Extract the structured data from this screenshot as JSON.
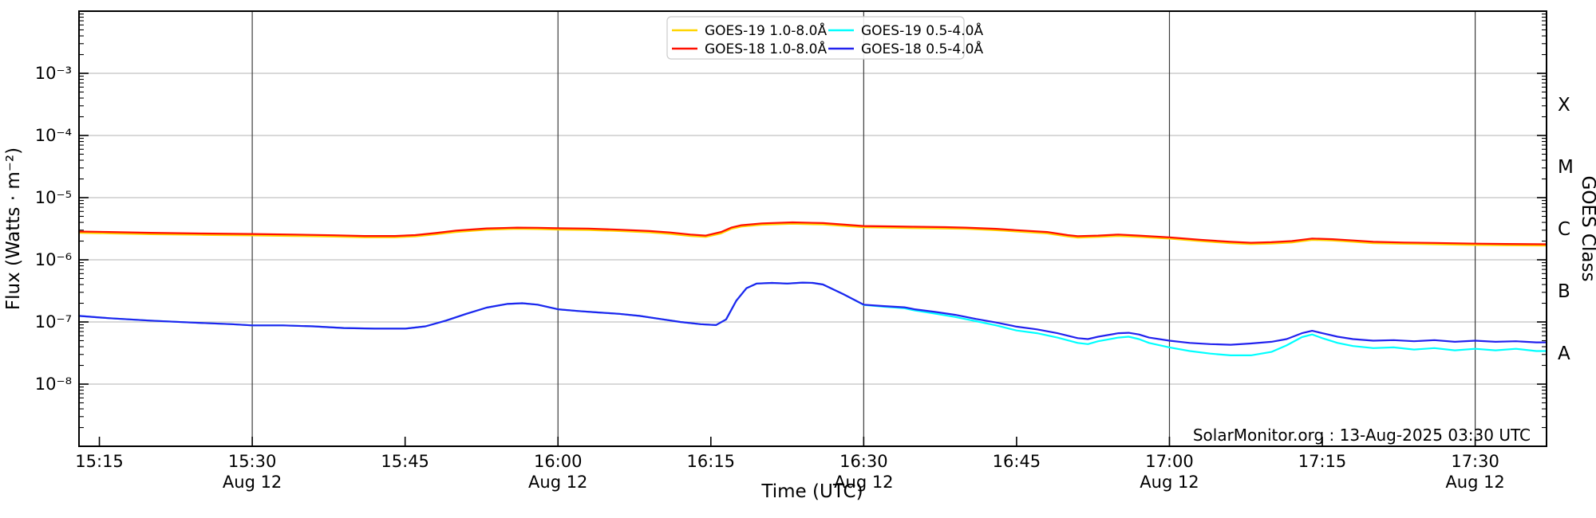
{
  "chart_data": {
    "type": "line",
    "title": "",
    "xlabel": "Time (UTC)",
    "ylabel": "Flux (Watts · m⁻²)",
    "annotation": "SolarMonitor.org : 13-Aug-2025 03:30 UTC",
    "grid": {
      "vertical_color": "#3c3c3c",
      "horizontal_color": "#c2c2c2"
    },
    "x_axis": {
      "start_minutes": 913,
      "end_minutes": 1057,
      "ticks": [
        {
          "t": 915,
          "label": "15:15",
          "sub": ""
        },
        {
          "t": 930,
          "label": "15:30",
          "sub": "Aug 12"
        },
        {
          "t": 945,
          "label": "15:45",
          "sub": ""
        },
        {
          "t": 960,
          "label": "16:00",
          "sub": "Aug 12"
        },
        {
          "t": 975,
          "label": "16:15",
          "sub": ""
        },
        {
          "t": 990,
          "label": "16:30",
          "sub": "Aug 12"
        },
        {
          "t": 1005,
          "label": "16:45",
          "sub": ""
        },
        {
          "t": 1020,
          "label": "17:00",
          "sub": "Aug 12"
        },
        {
          "t": 1035,
          "label": "17:15",
          "sub": ""
        },
        {
          "t": 1050,
          "label": "17:30",
          "sub": "Aug 12"
        }
      ]
    },
    "y_axis": {
      "log_min": -9,
      "log_max": -2,
      "ticks": [
        {
          "exp": -3,
          "label": "10⁻³"
        },
        {
          "exp": -4,
          "label": "10⁻⁴"
        },
        {
          "exp": -5,
          "label": "10⁻⁵"
        },
        {
          "exp": -6,
          "label": "10⁻⁶"
        },
        {
          "exp": -7,
          "label": "10⁻⁷"
        },
        {
          "exp": -8,
          "label": "10⁻⁸"
        }
      ]
    },
    "right_axis": {
      "label": "GOES Class",
      "classes": [
        {
          "label": "X",
          "log_center": -3.5
        },
        {
          "label": "M",
          "log_center": -4.5
        },
        {
          "label": "C",
          "log_center": -5.5
        },
        {
          "label": "B",
          "log_center": -6.5
        },
        {
          "label": "A",
          "log_center": -7.5
        }
      ]
    },
    "legend": {
      "position": "upper center",
      "columns": 2
    },
    "series": [
      {
        "name": "GOES-19 1.0-8.0Å",
        "color": "#ffd400",
        "points": [
          [
            913,
            2.71e-06
          ],
          [
            916,
            2.66e-06
          ],
          [
            920,
            2.58e-06
          ],
          [
            925,
            2.52e-06
          ],
          [
            930,
            2.47e-06
          ],
          [
            934,
            2.42e-06
          ],
          [
            938,
            2.36e-06
          ],
          [
            941,
            2.3e-06
          ],
          [
            944,
            2.3e-06
          ],
          [
            946,
            2.38e-06
          ],
          [
            948,
            2.57e-06
          ],
          [
            950,
            2.8e-06
          ],
          [
            953,
            3.04e-06
          ],
          [
            956,
            3.14e-06
          ],
          [
            958,
            3.12e-06
          ],
          [
            960,
            3.06e-06
          ],
          [
            963,
            3.02e-06
          ],
          [
            966,
            2.9e-06
          ],
          [
            969,
            2.76e-06
          ],
          [
            971,
            2.61e-06
          ],
          [
            973,
            2.42e-06
          ],
          [
            974.5,
            2.33e-06
          ],
          [
            976,
            2.66e-06
          ],
          [
            977,
            3.14e-06
          ],
          [
            978,
            3.42e-06
          ],
          [
            980,
            3.66e-06
          ],
          [
            983,
            3.8e-06
          ],
          [
            986,
            3.7e-06
          ],
          [
            990,
            3.33e-06
          ],
          [
            993,
            3.28e-06
          ],
          [
            995,
            3.23e-06
          ],
          [
            998,
            3.18e-06
          ],
          [
            1000,
            3.14e-06
          ],
          [
            1003,
            2.99e-06
          ],
          [
            1005,
            2.85e-06
          ],
          [
            1008,
            2.66e-06
          ],
          [
            1010,
            2.38e-06
          ],
          [
            1011,
            2.28e-06
          ],
          [
            1013,
            2.33e-06
          ],
          [
            1015,
            2.42e-06
          ],
          [
            1017,
            2.33e-06
          ],
          [
            1020,
            2.19e-06
          ],
          [
            1023,
            2e-06
          ],
          [
            1026,
            1.85e-06
          ],
          [
            1028,
            1.79e-06
          ],
          [
            1030,
            1.82e-06
          ],
          [
            1032,
            1.9e-06
          ],
          [
            1034,
            2.09e-06
          ],
          [
            1036,
            2.04e-06
          ],
          [
            1038,
            1.95e-06
          ],
          [
            1040,
            1.85e-06
          ],
          [
            1043,
            1.81e-06
          ],
          [
            1046,
            1.78e-06
          ],
          [
            1050,
            1.73e-06
          ],
          [
            1053,
            1.71e-06
          ],
          [
            1057,
            1.69e-06
          ]
        ]
      },
      {
        "name": "GOES-18 1.0-8.0Å",
        "color": "#ff0f00",
        "points": [
          [
            913,
            2.85e-06
          ],
          [
            916,
            2.8e-06
          ],
          [
            920,
            2.72e-06
          ],
          [
            925,
            2.65e-06
          ],
          [
            930,
            2.6e-06
          ],
          [
            934,
            2.55e-06
          ],
          [
            938,
            2.48e-06
          ],
          [
            941,
            2.42e-06
          ],
          [
            944,
            2.42e-06
          ],
          [
            946,
            2.5e-06
          ],
          [
            948,
            2.7e-06
          ],
          [
            950,
            2.95e-06
          ],
          [
            953,
            3.2e-06
          ],
          [
            956,
            3.3e-06
          ],
          [
            958,
            3.28e-06
          ],
          [
            960,
            3.22e-06
          ],
          [
            963,
            3.18e-06
          ],
          [
            966,
            3.05e-06
          ],
          [
            969,
            2.9e-06
          ],
          [
            971,
            2.75e-06
          ],
          [
            973,
            2.55e-06
          ],
          [
            974.5,
            2.45e-06
          ],
          [
            976,
            2.8e-06
          ],
          [
            977,
            3.3e-06
          ],
          [
            978,
            3.6e-06
          ],
          [
            980,
            3.85e-06
          ],
          [
            983,
            4e-06
          ],
          [
            986,
            3.9e-06
          ],
          [
            990,
            3.5e-06
          ],
          [
            993,
            3.45e-06
          ],
          [
            995,
            3.4e-06
          ],
          [
            998,
            3.35e-06
          ],
          [
            1000,
            3.3e-06
          ],
          [
            1003,
            3.15e-06
          ],
          [
            1005,
            3e-06
          ],
          [
            1008,
            2.8e-06
          ],
          [
            1010,
            2.5e-06
          ],
          [
            1011,
            2.4e-06
          ],
          [
            1013,
            2.45e-06
          ],
          [
            1015,
            2.55e-06
          ],
          [
            1017,
            2.45e-06
          ],
          [
            1020,
            2.3e-06
          ],
          [
            1023,
            2.1e-06
          ],
          [
            1026,
            1.95e-06
          ],
          [
            1028,
            1.88e-06
          ],
          [
            1030,
            1.92e-06
          ],
          [
            1032,
            2e-06
          ],
          [
            1034,
            2.2e-06
          ],
          [
            1036,
            2.15e-06
          ],
          [
            1038,
            2.05e-06
          ],
          [
            1040,
            1.95e-06
          ],
          [
            1043,
            1.9e-06
          ],
          [
            1046,
            1.87e-06
          ],
          [
            1050,
            1.82e-06
          ],
          [
            1053,
            1.8e-06
          ],
          [
            1057,
            1.78e-06
          ]
        ]
      },
      {
        "name": "GOES-19 0.5-4.0Å",
        "color": "#00ffff",
        "points": [
          [
            913,
            1.25e-07
          ],
          [
            916,
            1.15e-07
          ],
          [
            920,
            1.05e-07
          ],
          [
            924,
            9.8e-08
          ],
          [
            928,
            9.2e-08
          ],
          [
            930,
            8.8e-08
          ],
          [
            933,
            8.8e-08
          ],
          [
            936,
            8.5e-08
          ],
          [
            939,
            8e-08
          ],
          [
            942,
            7.8e-08
          ],
          [
            945,
            7.8e-08
          ],
          [
            947,
            8.5e-08
          ],
          [
            949,
            1.05e-07
          ],
          [
            951,
            1.35e-07
          ],
          [
            953,
            1.7e-07
          ],
          [
            955,
            1.95e-07
          ],
          [
            956.5,
            2e-07
          ],
          [
            958,
            1.9e-07
          ],
          [
            960,
            1.6e-07
          ],
          [
            962,
            1.5e-07
          ],
          [
            964,
            1.42e-07
          ],
          [
            966,
            1.35e-07
          ],
          [
            968,
            1.25e-07
          ],
          [
            970,
            1.12e-07
          ],
          [
            972,
            1e-07
          ],
          [
            974,
            9.2e-08
          ],
          [
            975.5,
            8.9e-08
          ],
          [
            976.5,
            1.1e-07
          ],
          [
            977.5,
            2.2e-07
          ],
          [
            978.5,
            3.5e-07
          ],
          [
            979.5,
            4.15e-07
          ],
          [
            981,
            4.25e-07
          ],
          [
            982.5,
            4.15e-07
          ],
          [
            984,
            4.3e-07
          ],
          [
            985,
            4.25e-07
          ],
          [
            986,
            4e-07
          ],
          [
            988,
            2.8e-07
          ],
          [
            990,
            1.88e-07
          ],
          [
            992,
            1.76e-07
          ],
          [
            994,
            1.66e-07
          ],
          [
            995,
            1.53e-07
          ],
          [
            997,
            1.36e-07
          ],
          [
            999,
            1.2e-07
          ],
          [
            1001,
            1.03e-07
          ],
          [
            1003,
            8.8e-08
          ],
          [
            1005,
            7.3e-08
          ],
          [
            1007,
            6.6e-08
          ],
          [
            1009,
            5.6e-08
          ],
          [
            1011,
            4.6e-08
          ],
          [
            1012,
            4.4e-08
          ],
          [
            1013,
            4.9e-08
          ],
          [
            1015,
            5.6e-08
          ],
          [
            1016,
            5.8e-08
          ],
          [
            1017,
            5.3e-08
          ],
          [
            1018,
            4.6e-08
          ],
          [
            1020,
            3.9e-08
          ],
          [
            1022,
            3.4e-08
          ],
          [
            1024,
            3.1e-08
          ],
          [
            1026,
            2.9e-08
          ],
          [
            1028,
            2.9e-08
          ],
          [
            1030,
            3.3e-08
          ],
          [
            1031.5,
            4.2e-08
          ],
          [
            1033,
            5.7e-08
          ],
          [
            1034,
            6.3e-08
          ],
          [
            1035,
            5.5e-08
          ],
          [
            1036.5,
            4.6e-08
          ],
          [
            1038,
            4.1e-08
          ],
          [
            1040,
            3.8e-08
          ],
          [
            1042,
            3.9e-08
          ],
          [
            1044,
            3.6e-08
          ],
          [
            1046,
            3.8e-08
          ],
          [
            1048,
            3.5e-08
          ],
          [
            1050,
            3.7e-08
          ],
          [
            1052,
            3.5e-08
          ],
          [
            1054,
            3.7e-08
          ],
          [
            1056,
            3.4e-08
          ],
          [
            1057,
            3.4e-08
          ]
        ]
      },
      {
        "name": "GOES-18 0.5-4.0Å",
        "color": "#2222ee",
        "points": [
          [
            913,
            1.25e-07
          ],
          [
            916,
            1.15e-07
          ],
          [
            920,
            1.05e-07
          ],
          [
            924,
            9.8e-08
          ],
          [
            928,
            9.2e-08
          ],
          [
            930,
            8.8e-08
          ],
          [
            933,
            8.8e-08
          ],
          [
            936,
            8.5e-08
          ],
          [
            939,
            8e-08
          ],
          [
            942,
            7.8e-08
          ],
          [
            945,
            7.8e-08
          ],
          [
            947,
            8.5e-08
          ],
          [
            949,
            1.05e-07
          ],
          [
            951,
            1.35e-07
          ],
          [
            953,
            1.7e-07
          ],
          [
            955,
            1.95e-07
          ],
          [
            956.5,
            2e-07
          ],
          [
            958,
            1.9e-07
          ],
          [
            960,
            1.6e-07
          ],
          [
            962,
            1.5e-07
          ],
          [
            964,
            1.42e-07
          ],
          [
            966,
            1.35e-07
          ],
          [
            968,
            1.25e-07
          ],
          [
            970,
            1.12e-07
          ],
          [
            972,
            1e-07
          ],
          [
            974,
            9.2e-08
          ],
          [
            975.5,
            8.9e-08
          ],
          [
            976.5,
            1.1e-07
          ],
          [
            977.5,
            2.2e-07
          ],
          [
            978.5,
            3.5e-07
          ],
          [
            979.5,
            4.15e-07
          ],
          [
            981,
            4.25e-07
          ],
          [
            982.5,
            4.15e-07
          ],
          [
            984,
            4.3e-07
          ],
          [
            985,
            4.25e-07
          ],
          [
            986,
            4e-07
          ],
          [
            988,
            2.8e-07
          ],
          [
            990,
            1.9e-07
          ],
          [
            992,
            1.8e-07
          ],
          [
            994,
            1.72e-07
          ],
          [
            995,
            1.6e-07
          ],
          [
            997,
            1.45e-07
          ],
          [
            999,
            1.3e-07
          ],
          [
            1001,
            1.12e-07
          ],
          [
            1003,
            9.8e-08
          ],
          [
            1005,
            8.4e-08
          ],
          [
            1007,
            7.6e-08
          ],
          [
            1009,
            6.6e-08
          ],
          [
            1011,
            5.5e-08
          ],
          [
            1012,
            5.3e-08
          ],
          [
            1013,
            5.8e-08
          ],
          [
            1015,
            6.6e-08
          ],
          [
            1016,
            6.7e-08
          ],
          [
            1017,
            6.3e-08
          ],
          [
            1018,
            5.6e-08
          ],
          [
            1020,
            5e-08
          ],
          [
            1022,
            4.6e-08
          ],
          [
            1024,
            4.4e-08
          ],
          [
            1026,
            4.3e-08
          ],
          [
            1028,
            4.5e-08
          ],
          [
            1030,
            4.8e-08
          ],
          [
            1031.5,
            5.3e-08
          ],
          [
            1033,
            6.6e-08
          ],
          [
            1034,
            7.2e-08
          ],
          [
            1035,
            6.6e-08
          ],
          [
            1036.5,
            5.8e-08
          ],
          [
            1038,
            5.3e-08
          ],
          [
            1040,
            5e-08
          ],
          [
            1042,
            5.1e-08
          ],
          [
            1044,
            4.9e-08
          ],
          [
            1046,
            5.1e-08
          ],
          [
            1048,
            4.8e-08
          ],
          [
            1050,
            5e-08
          ],
          [
            1052,
            4.8e-08
          ],
          [
            1054,
            4.9e-08
          ],
          [
            1056,
            4.7e-08
          ],
          [
            1057,
            4.7e-08
          ]
        ]
      }
    ]
  }
}
